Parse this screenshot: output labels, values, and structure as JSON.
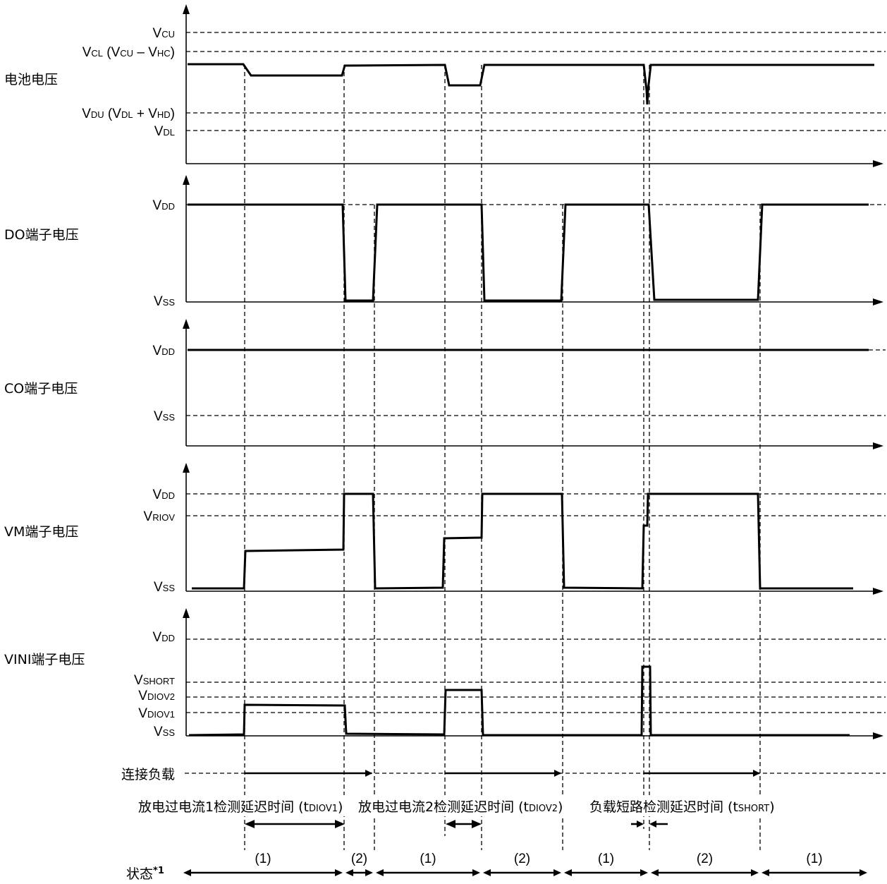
{
  "signals": {
    "battery": {
      "label": "电池电压",
      "levels": {
        "vcu": {
          "main": "V",
          "sub": "CU"
        },
        "vcl": {
          "main": "V",
          "sub": "CL",
          "tail": " (V",
          "sub2": "CU",
          "tail2": " – V",
          "sub3": "HC",
          "tail3": ")"
        },
        "vdu": {
          "main": "V",
          "sub": "DU",
          "tail": " (V",
          "sub2": "DL",
          "tail2": " + V",
          "sub3": "HD",
          "tail3": ")"
        },
        "vdl": {
          "main": "V",
          "sub": "DL"
        }
      }
    },
    "do": {
      "label": "DO端子电压",
      "levels": {
        "vdd": {
          "main": "V",
          "sub": "DD"
        },
        "vss": {
          "main": "V",
          "sub": "SS"
        }
      }
    },
    "co": {
      "label": "CO端子电压",
      "levels": {
        "vdd": {
          "main": "V",
          "sub": "DD"
        },
        "vss": {
          "main": "V",
          "sub": "SS"
        }
      }
    },
    "vm": {
      "label": "VM端子电压",
      "levels": {
        "vdd": {
          "main": "V",
          "sub": "DD"
        },
        "vriov": {
          "main": "V",
          "sub": "RIOV"
        },
        "vss": {
          "main": "V",
          "sub": "SS"
        }
      }
    },
    "vini": {
      "label": "VINI端子电压",
      "levels": {
        "vdd": {
          "main": "V",
          "sub": "DD"
        },
        "vshort": {
          "main": "V",
          "sub": "SHORT"
        },
        "vdiov2": {
          "main": "V",
          "sub": "DIOV2"
        },
        "vdiov1": {
          "main": "V",
          "sub": "DIOV1"
        },
        "vss": {
          "main": "V",
          "sub": "SS"
        }
      }
    }
  },
  "load_row": {
    "label": "连接负载"
  },
  "delays": {
    "d1": {
      "text": "放电过电流1检测延迟时间 (t",
      "sub": "DIOV1",
      "close": ")"
    },
    "d2": {
      "text": "放电过电流2检测延迟时间 (t",
      "sub": "DIOV2",
      "close": ")"
    },
    "d3": {
      "text": "负载短路检测延迟时间 (t",
      "sub": "SHORT",
      "close": ")"
    }
  },
  "state_row": {
    "label": "状态",
    "footnote": "*1",
    "states": [
      "(1)",
      "(2)",
      "(1)",
      "(2)",
      "(1)",
      "(2)",
      "(1)"
    ]
  }
}
